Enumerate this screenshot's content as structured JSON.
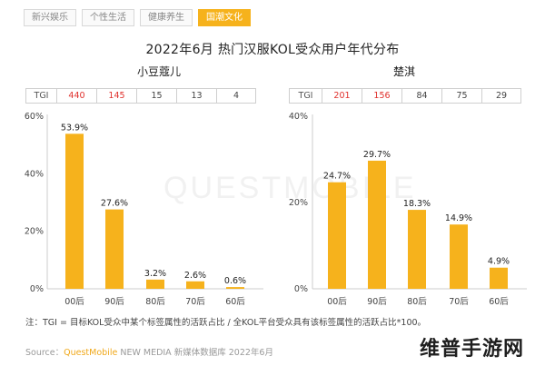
{
  "tabs": [
    "新兴娱乐",
    "个性生活",
    "健康养生",
    "国潮文化"
  ],
  "active_tab": 3,
  "title": "2022年6月 热门汉服KOL受众用户年代分布",
  "tgi_label": "TGI",
  "colors": {
    "bar": "#f6b21c",
    "tab_active": "#f6b21c",
    "tgi_high": "#e0312d"
  },
  "chart_data": [
    {
      "type": "bar",
      "title": "小豆蔻儿",
      "categories": [
        "00后",
        "90后",
        "80后",
        "70后",
        "60后"
      ],
      "values": [
        53.9,
        27.6,
        3.2,
        2.6,
        0.6
      ],
      "value_labels": [
        "53.9%",
        "27.6%",
        "3.2%",
        "2.6%",
        "0.6%"
      ],
      "tgi": [
        "440",
        "145",
        "15",
        "13",
        "4"
      ],
      "tgi_high": [
        true,
        true,
        false,
        false,
        false
      ],
      "ylim": [
        0,
        60
      ],
      "yticks": [
        "0%",
        "20%",
        "40%",
        "60%"
      ],
      "xlabel": "",
      "ylabel": ""
    },
    {
      "type": "bar",
      "title": "楚淇",
      "categories": [
        "00后",
        "90后",
        "80后",
        "70后",
        "60后"
      ],
      "values": [
        24.7,
        29.7,
        18.3,
        14.9,
        4.9
      ],
      "value_labels": [
        "24.7%",
        "29.7%",
        "18.3%",
        "14.9%",
        "4.9%"
      ],
      "tgi": [
        "201",
        "156",
        "84",
        "75",
        "29"
      ],
      "tgi_high": [
        true,
        true,
        false,
        false,
        false
      ],
      "ylim": [
        0,
        40
      ],
      "yticks": [
        "0%",
        "20%",
        "40%"
      ],
      "xlabel": "",
      "ylabel": ""
    }
  ],
  "footnote": "注：TGI = 目标KOL受众中某个标签属性的活跃占比 / 全KOL平台受众具有该标签属性的活跃占比*100。",
  "source_prefix": "Source：",
  "source_brand": "QuestMobile",
  "source_rest": " NEW MEDIA 新媒体数据库 2022年6月",
  "watermark": "维普手游网",
  "background_mark": "QUESTMOBILE"
}
